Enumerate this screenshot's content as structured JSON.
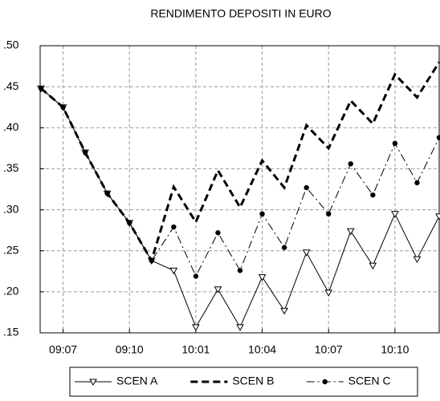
{
  "chart_data": {
    "type": "line",
    "title": "RENDIMENTO DEPOSITI IN EURO",
    "categories": [
      null,
      "09:07",
      null,
      null,
      "09:10",
      null,
      null,
      "10:01",
      null,
      null,
      "10:04",
      null,
      null,
      "10:07",
      null,
      null,
      "10:10",
      null,
      null
    ],
    "series": [
      {
        "name": "SCEN A",
        "color": "#000000",
        "dash": "solid",
        "width": 1,
        "marker": "triangle-down",
        "values": [
          0.448,
          0.425,
          0.37,
          0.32,
          0.284,
          0.238,
          0.226,
          0.157,
          0.203,
          0.157,
          0.218,
          0.177,
          0.248,
          0.199,
          0.274,
          0.232,
          0.295,
          0.24,
          0.292
        ]
      },
      {
        "name": "SCEN B",
        "color": "#000000",
        "dash": "dashed",
        "width": 3,
        "marker": "none",
        "values": [
          0.448,
          0.425,
          0.37,
          0.32,
          0.284,
          0.238,
          0.328,
          0.285,
          0.348,
          0.303,
          0.36,
          0.327,
          0.403,
          0.375,
          0.433,
          0.405,
          0.465,
          0.437,
          0.48
        ]
      },
      {
        "name": "SCEN C",
        "color": "#000000",
        "dash": "dashdot",
        "width": 1,
        "marker": "circle",
        "values": [
          0.448,
          0.425,
          0.37,
          0.32,
          0.284,
          0.238,
          0.279,
          0.219,
          0.272,
          0.226,
          0.295,
          0.254,
          0.327,
          0.295,
          0.356,
          0.318,
          0.381,
          0.333,
          0.388
        ]
      }
    ],
    "ylim": [
      0.15,
      0.5
    ],
    "yticks": [
      {
        "value": 0.15,
        "label": ".15"
      },
      {
        "value": 0.2,
        "label": ".20"
      },
      {
        "value": 0.25,
        "label": ".25"
      },
      {
        "value": 0.3,
        "label": ".30"
      },
      {
        "value": 0.35,
        "label": ".35"
      },
      {
        "value": 0.4,
        "label": ".40"
      },
      {
        "value": 0.45,
        "label": ".45"
      },
      {
        "value": 0.5,
        "label": ".50"
      }
    ],
    "grid": true,
    "legend": "bottom"
  }
}
